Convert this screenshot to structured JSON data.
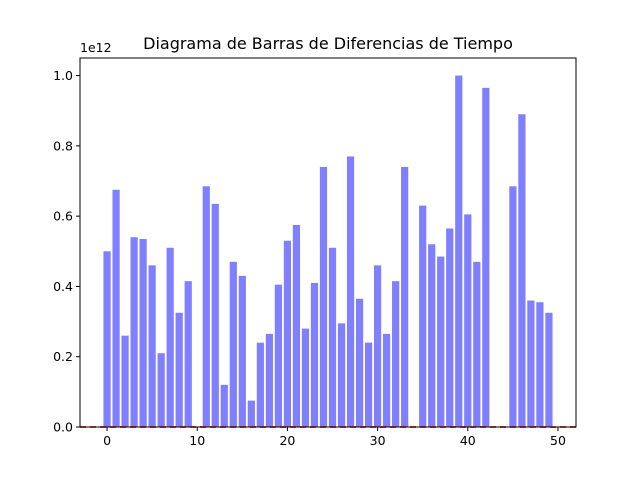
{
  "chart_data": {
    "type": "bar",
    "title": "Diagrama de Barras de Diferencias de Tiempo",
    "xlabel": "",
    "ylabel": "",
    "y_scale_label": "1e12",
    "y_multiplier": 1000000000000.0,
    "xlim": [
      -3,
      52
    ],
    "ylim": [
      0,
      1.05
    ],
    "x_ticks": [
      0,
      10,
      20,
      30,
      40,
      50
    ],
    "y_ticks": [
      0.0,
      0.2,
      0.4,
      0.6,
      0.8,
      1.0
    ],
    "y_tick_labels": [
      "0.0",
      "0.2",
      "0.4",
      "0.6",
      "0.8",
      "1.0"
    ],
    "bar_color": "#8080ff",
    "baseline_color": "#d62728",
    "grid": false,
    "x": [
      0,
      1,
      2,
      3,
      4,
      5,
      6,
      7,
      8,
      9,
      10,
      11,
      12,
      13,
      14,
      15,
      16,
      17,
      18,
      19,
      20,
      21,
      22,
      23,
      24,
      25,
      26,
      27,
      28,
      29,
      30,
      31,
      32,
      33,
      34,
      35,
      36,
      37,
      38,
      39,
      40,
      41,
      42,
      43,
      44,
      45,
      46,
      47,
      48,
      49
    ],
    "values": [
      0.5,
      0.675,
      0.26,
      0.54,
      0.535,
      0.46,
      0.21,
      0.51,
      0.325,
      0.415,
      0,
      0.685,
      0.635,
      0.12,
      0.47,
      0.43,
      0.075,
      0.24,
      0.265,
      0.405,
      0.53,
      0.575,
      0.28,
      0.41,
      0.74,
      0.51,
      0.295,
      0.77,
      0.365,
      0.24,
      0.46,
      0.265,
      0.415,
      0.74,
      0,
      0.63,
      0.52,
      0.485,
      0.565,
      1.0,
      0.605,
      0.47,
      0.965,
      0,
      0,
      0.685,
      0.89,
      0.36,
      0.355,
      0.325
    ]
  }
}
